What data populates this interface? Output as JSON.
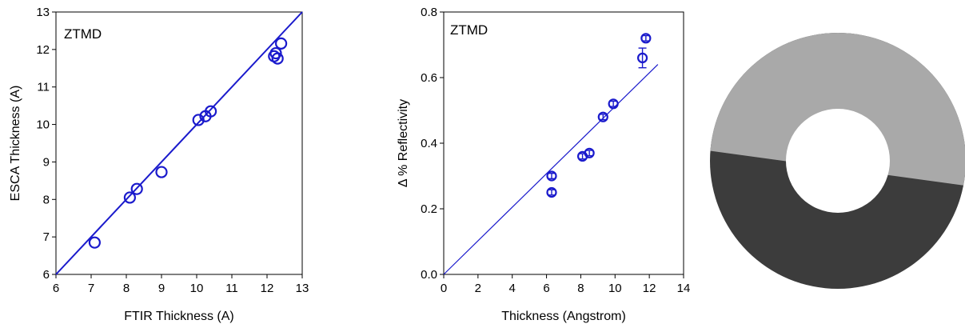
{
  "chart_data": [
    {
      "type": "scatter",
      "title": "",
      "annotation": "ZTMD",
      "xlabel": "FTIR Thickness (A)",
      "ylabel": "ESCA Thickness (A)",
      "xlim": [
        6,
        13
      ],
      "ylim": [
        6,
        13
      ],
      "xticks": [
        6,
        7,
        8,
        9,
        10,
        11,
        12,
        13
      ],
      "yticks": [
        6,
        7,
        8,
        9,
        10,
        11,
        12,
        13
      ],
      "marker_color": "#1a1acc",
      "line_color": "#1a1acc",
      "fit_line": [
        [
          6,
          6
        ],
        [
          13,
          13
        ]
      ],
      "series": [
        {
          "x": [
            7.1,
            8.1,
            8.3,
            9.0,
            10.05,
            10.25,
            10.4,
            12.2,
            12.25,
            12.3,
            12.4
          ],
          "y": [
            6.85,
            8.05,
            8.28,
            8.73,
            10.12,
            10.22,
            10.35,
            11.82,
            11.9,
            11.76,
            12.16
          ]
        }
      ]
    },
    {
      "type": "scatter",
      "title": "",
      "annotation": "ZTMD",
      "xlabel": "Thickness (Angstrom)",
      "ylabel": "Δ % Reflectivity",
      "xlim": [
        0,
        14
      ],
      "ylim": [
        0.0,
        0.8
      ],
      "xticks": [
        0,
        2,
        4,
        6,
        8,
        10,
        12,
        14
      ],
      "yticks": [
        "0.0",
        "0.2",
        "0.4",
        "0.6",
        "0.8"
      ],
      "marker_color": "#1a1acc",
      "line_color": "#1a1acc",
      "fit_line": [
        [
          0,
          0
        ],
        [
          12.5,
          0.64
        ]
      ],
      "series": [
        {
          "x": [
            6.3,
            6.3,
            8.1,
            8.5,
            9.3,
            9.9,
            11.6,
            11.8
          ],
          "y": [
            0.3,
            0.25,
            0.36,
            0.37,
            0.48,
            0.52,
            0.66,
            0.72
          ],
          "yerr": [
            0.008,
            0.008,
            0.008,
            0.008,
            0.008,
            0.008,
            0.03,
            0.008
          ]
        }
      ]
    }
  ],
  "wafer_image": {
    "upper_color": "#a9a9a9",
    "lower_color": "#3c3c3c",
    "hole_color": "#ffffff"
  }
}
